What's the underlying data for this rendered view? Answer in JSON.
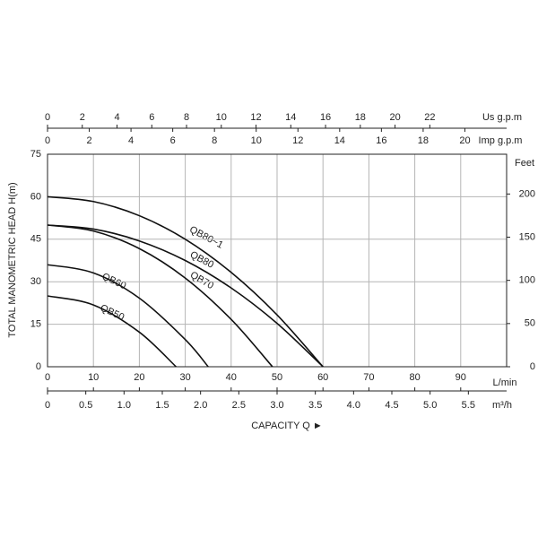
{
  "chart_data": {
    "type": "line",
    "y_label": "TOTAL MANOMETRIC HEAD H(m)",
    "x_label": "L/min",
    "xlim": [
      0,
      100
    ],
    "xticks": [
      0,
      10,
      20,
      30,
      40,
      50,
      60,
      70,
      80,
      90
    ],
    "ylim": [
      0,
      75
    ],
    "yticks": [
      0,
      15,
      30,
      45,
      60,
      75
    ],
    "y2_label": "Feet",
    "y2lim": [
      0,
      246.06
    ],
    "y2ticks": [
      0,
      50,
      100,
      150,
      200
    ],
    "grid": true,
    "extra_x_axes": [
      {
        "label": "Us g.p.m",
        "xlim": [
          0,
          26.42
        ],
        "xticks": [
          0,
          2,
          4,
          6,
          8,
          10,
          12,
          14,
          16,
          18,
          20,
          22
        ]
      },
      {
        "label": "Imp g.p.m",
        "xlim": [
          0,
          22
        ],
        "xticks": [
          0,
          2,
          4,
          6,
          8,
          10,
          12,
          14,
          16,
          18,
          20
        ]
      },
      {
        "label": "m³/h",
        "xlim": [
          0,
          6
        ],
        "xticks": [
          0,
          0.5,
          {
            "value": 1,
            "label": "1.0"
          },
          1.5,
          {
            "value": 2,
            "label": "2.0"
          },
          2.5,
          {
            "value": 3,
            "label": "3.0"
          },
          3.5,
          {
            "value": 4,
            "label": "4.0"
          },
          4.5,
          {
            "value": 5,
            "label": "5.0"
          },
          5.5
        ]
      }
    ],
    "caption": "CAPACITY Q ►",
    "series": [
      {
        "name": "QB80~1",
        "color": "#111111",
        "x": [
          0,
          10,
          20,
          30,
          40,
          50,
          60
        ],
        "values": [
          60,
          58.3,
          53.3,
          45,
          33.3,
          18.3,
          0
        ]
      },
      {
        "name": "QB80",
        "color": "#111111",
        "x": [
          0,
          10,
          20,
          30,
          40,
          50,
          60
        ],
        "values": [
          50,
          48.6,
          44.4,
          37.5,
          27.8,
          15.3,
          0
        ]
      },
      {
        "name": "QB70",
        "color": "#111111",
        "x": [
          0,
          10,
          20,
          30,
          40,
          49
        ],
        "values": [
          50,
          47.9,
          41.7,
          31.3,
          16.7,
          0
        ]
      },
      {
        "name": "QB60",
        "color": "#111111",
        "x": [
          0,
          10,
          20,
          30,
          35
        ],
        "values": [
          36,
          33.1,
          24.2,
          9.6,
          0
        ]
      },
      {
        "name": "QB50",
        "color": "#111111",
        "x": [
          0,
          10,
          20,
          28
        ],
        "values": [
          25,
          21.8,
          12.2,
          0
        ]
      }
    ]
  }
}
